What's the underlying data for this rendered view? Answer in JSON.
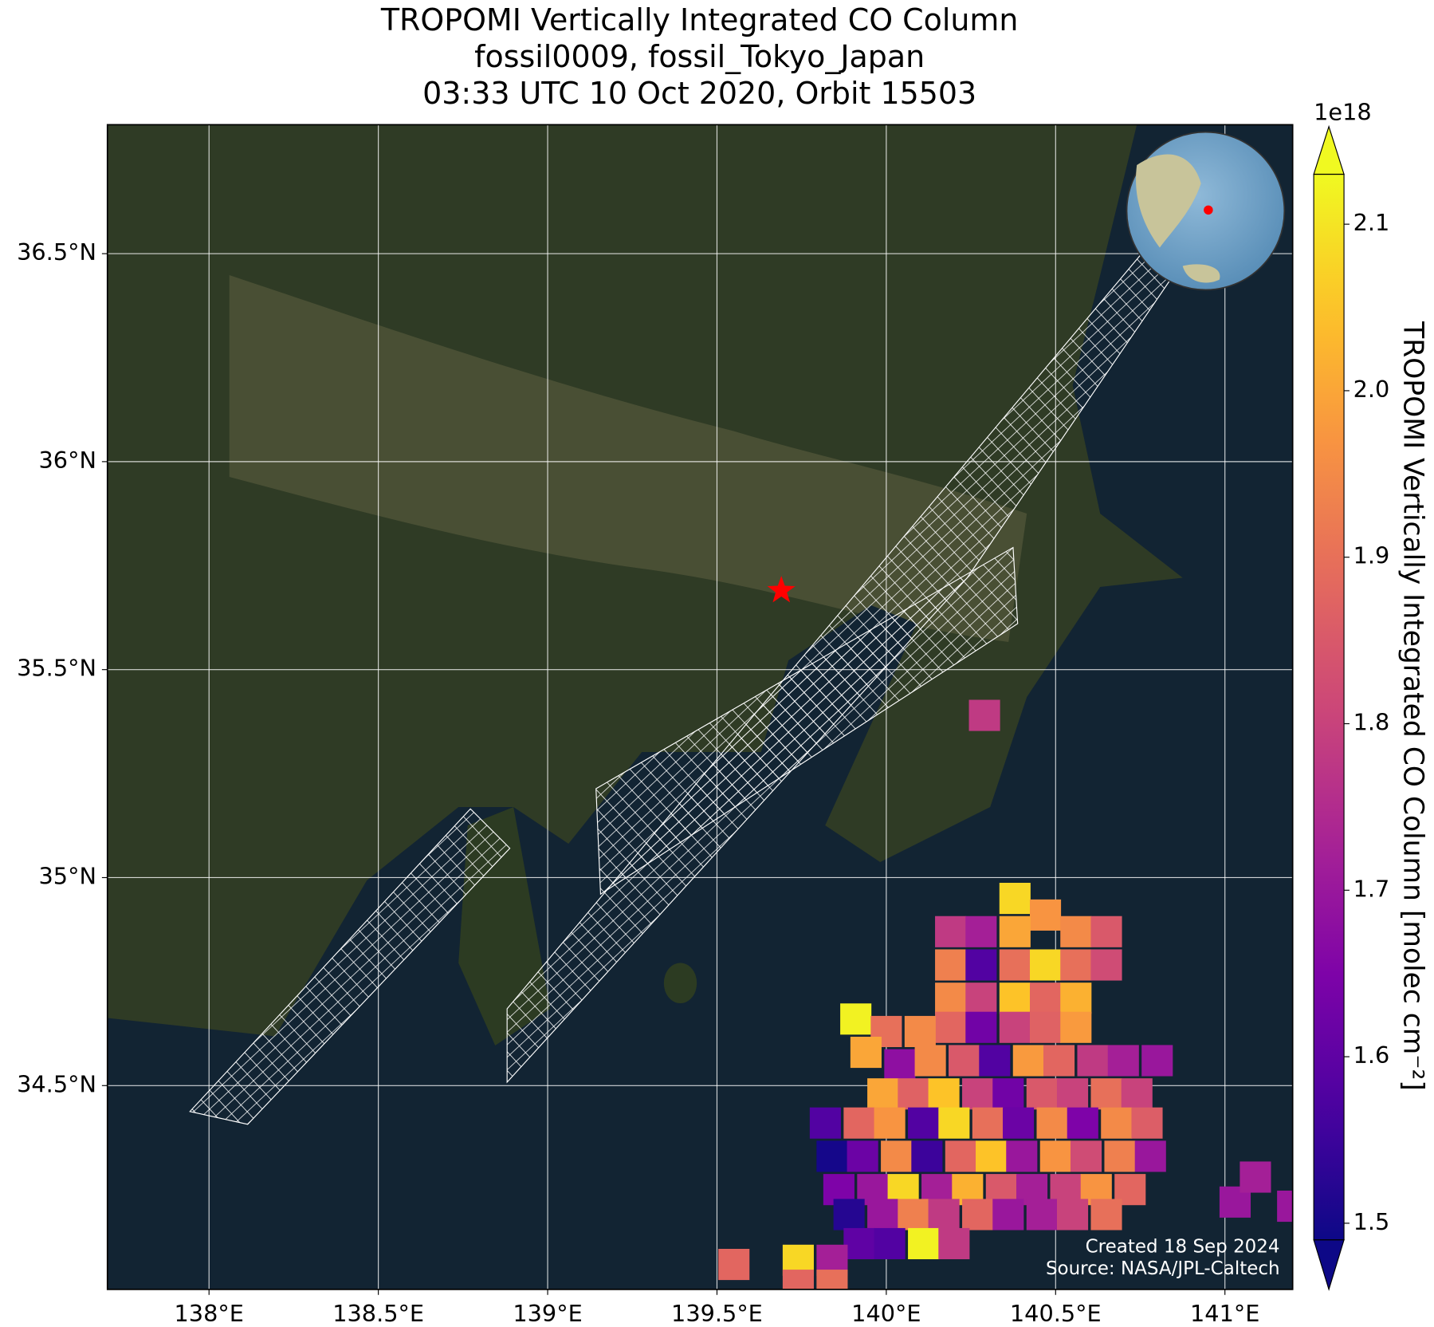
{
  "chart_data": {
    "type": "map",
    "title": [
      "TROPOMI Vertically Integrated CO Column",
      "fossil0009, fossil_Tokyo_Japan",
      "03:33 UTC 10 Oct 2020, Orbit 15503"
    ],
    "xlim": [
      137.7,
      141.2
    ],
    "ylim": [
      34.01,
      36.81
    ],
    "xticks": [
      {
        "value": 138,
        "label": "138°E"
      },
      {
        "value": 138.5,
        "label": "138.5°E"
      },
      {
        "value": 139,
        "label": "139°E"
      },
      {
        "value": 139.5,
        "label": "139.5°E"
      },
      {
        "value": 140,
        "label": "140°E"
      },
      {
        "value": 140.5,
        "label": "140.5°E"
      },
      {
        "value": 141,
        "label": "141°E"
      }
    ],
    "yticks": [
      {
        "value": 34.5,
        "label": "34.5°N"
      },
      {
        "value": 35,
        "label": "35°N"
      },
      {
        "value": 35.5,
        "label": "35.5°N"
      },
      {
        "value": 36,
        "label": "36°N"
      },
      {
        "value": 36.5,
        "label": "36.5°N"
      }
    ],
    "grid": true,
    "colormap": "plasma",
    "zlim": [
      1.49,
      2.13
    ],
    "zticks": [
      1.5,
      1.6,
      1.7,
      1.8,
      1.9,
      {
        "value": 2,
        "label": "2.0"
      },
      2.1
    ],
    "zoffset": "1e18",
    "colorbar_label": "TROPOMI Vertically Integrated CO Column [molec cm⁻²]",
    "x": [
      140.38,
      140.47,
      140.19,
      140.28,
      140.38,
      140.56,
      140.65,
      140.19,
      140.28,
      140.38,
      140.47,
      140.56,
      140.65,
      140.19,
      140.28,
      140.38,
      140.47,
      140.56,
      139.91,
      140.19,
      140.28,
      140.38,
      140.47,
      140.56,
      140.0,
      140.1,
      139.94,
      140.04,
      140.13,
      140.23,
      140.32,
      140.42,
      140.51,
      140.61,
      140.7,
      140.8,
      139.99,
      140.08,
      140.17,
      140.27,
      140.36,
      140.46,
      140.55,
      140.65,
      140.74,
      139.82,
      139.92,
      140.01,
      140.11,
      140.2,
      140.3,
      140.39,
      140.49,
      140.58,
      140.68,
      140.77,
      139.84,
      139.93,
      140.03,
      140.12,
      140.22,
      140.31,
      140.4,
      140.5,
      140.59,
      140.69,
      140.78,
      139.86,
      139.96,
      140.05,
      140.15,
      140.24,
      140.34,
      140.43,
      140.53,
      140.62,
      140.72,
      139.89,
      139.99,
      140.08,
      140.17,
      140.27,
      140.36,
      140.46,
      140.55,
      140.65,
      139.92,
      140.01,
      140.11,
      140.2,
      139.74,
      139.84,
      139.74,
      139.84,
      140.29,
      139.55,
      141.03,
      141.09,
      141.2
    ],
    "y": [
      34.95,
      34.91,
      34.87,
      34.87,
      34.87,
      34.87,
      34.87,
      34.79,
      34.79,
      34.79,
      34.79,
      34.79,
      34.79,
      34.71,
      34.71,
      34.71,
      34.71,
      34.71,
      34.66,
      34.64,
      34.64,
      34.64,
      34.64,
      34.64,
      34.63,
      34.63,
      34.58,
      34.55,
      34.56,
      34.56,
      34.56,
      34.56,
      34.56,
      34.56,
      34.56,
      34.56,
      34.48,
      34.48,
      34.48,
      34.48,
      34.48,
      34.48,
      34.48,
      34.48,
      34.48,
      34.41,
      34.41,
      34.41,
      34.41,
      34.41,
      34.41,
      34.41,
      34.41,
      34.41,
      34.41,
      34.41,
      34.33,
      34.33,
      34.33,
      34.33,
      34.33,
      34.33,
      34.33,
      34.33,
      34.33,
      34.33,
      34.33,
      34.25,
      34.25,
      34.25,
      34.25,
      34.25,
      34.25,
      34.25,
      34.25,
      34.25,
      34.25,
      34.19,
      34.19,
      34.19,
      34.19,
      34.19,
      34.19,
      34.19,
      34.19,
      34.19,
      34.12,
      34.12,
      34.12,
      34.12,
      34.08,
      34.08,
      34.02,
      34.02,
      35.39,
      34.07,
      34.22,
      34.28,
      34.21
    ],
    "values": [
      2.08,
      1.97,
      1.78,
      1.72,
      2,
      1.95,
      1.85,
      1.93,
      1.58,
      1.9,
      2.08,
      1.9,
      1.82,
      1.95,
      1.8,
      2.05,
      1.88,
      2.02,
      2.12,
      1.88,
      1.63,
      1.8,
      1.87,
      1.98,
      1.9,
      1.95,
      2,
      1.68,
      1.95,
      1.85,
      1.58,
      1.98,
      1.88,
      1.78,
      1.72,
      1.7,
      2,
      1.87,
      2.05,
      1.8,
      1.63,
      1.85,
      1.8,
      1.9,
      1.8,
      1.58,
      1.88,
      1.97,
      1.58,
      2.08,
      1.9,
      1.62,
      1.95,
      1.65,
      1.95,
      1.86,
      1.5,
      1.62,
      1.95,
      1.55,
      1.88,
      2.05,
      1.7,
      1.97,
      1.82,
      1.93,
      1.7,
      1.65,
      1.7,
      2.08,
      1.72,
      2.02,
      1.85,
      1.72,
      1.8,
      1.97,
      1.88,
      1.52,
      1.7,
      1.93,
      1.78,
      1.88,
      1.7,
      1.72,
      1.8,
      1.9,
      1.6,
      1.58,
      2.12,
      1.78,
      2.08,
      1.72,
      1.88,
      1.9,
      1.78,
      1.88,
      1.7,
      1.72,
      1.7
    ],
    "site": {
      "lon": 139.69,
      "lat": 35.69,
      "color": "#ff0000"
    },
    "annotations": [
      "Created 18 Sep 2024",
      "Source: NASA/JPL-Caltech"
    ]
  }
}
